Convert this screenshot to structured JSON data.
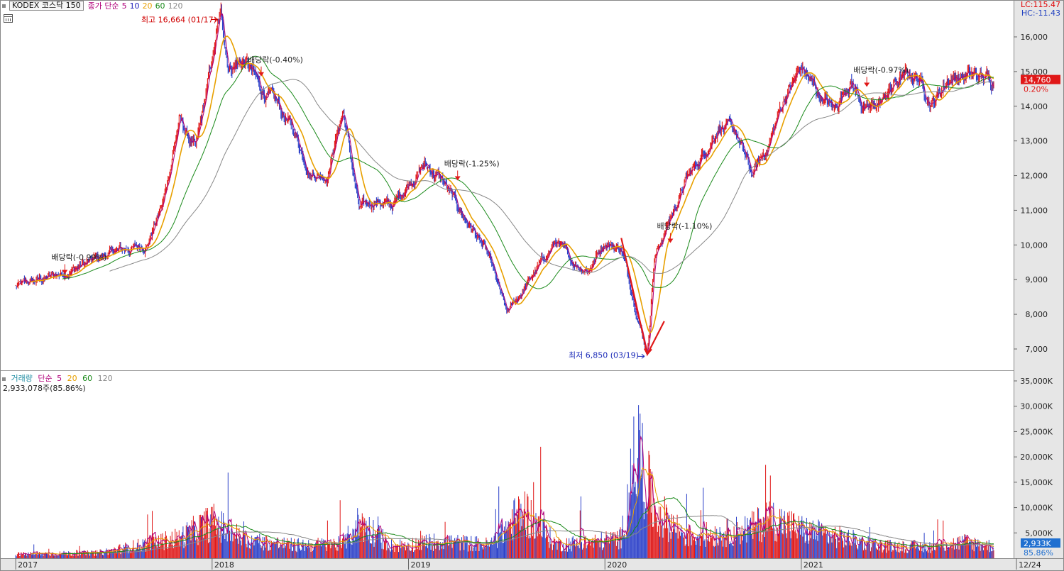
{
  "header": {
    "instrument": "KODEX 코스닥 150",
    "price_indicator": "종가 단순",
    "ma_periods": [
      "5",
      "10",
      "20",
      "60",
      "120"
    ],
    "lc": "LC:115.47",
    "hc": "HC:-11.43"
  },
  "volume_header": {
    "label": "거래량",
    "ma_type": "단순",
    "ma_periods": [
      "5",
      "20",
      "60",
      "120"
    ],
    "current": "2,933,078주(85.86%)"
  },
  "colors": {
    "up": "#e01818",
    "down": "#2a3fc8",
    "ma5": "#b0007a",
    "ma20": "#e8a000",
    "ma60": "#1a8a1a",
    "ma120": "#888888",
    "price_tag": "#e01818",
    "volume_tag": "#1f6fd0"
  },
  "chart_data": [
    {
      "type": "line",
      "title": "KODEX 코스닥 150",
      "ylim": [
        6500,
        17000
      ],
      "y_ticks": [
        7000,
        8000,
        9000,
        10000,
        11000,
        12000,
        13000,
        14000,
        15000,
        16000
      ],
      "y_tick_labels": [
        "7,000",
        "8,000",
        "9,000",
        "10,000",
        "11,000",
        "12,000",
        "13,000",
        "14,000",
        "15,000",
        "16,000"
      ],
      "x_tick_labels": [
        "2017",
        "2018",
        "2019",
        "2020",
        "2021",
        "12/24"
      ],
      "x_ticks": [
        "2017-01",
        "2018-01",
        "2019-01",
        "2020-01",
        "2021-01",
        "2021-12-24"
      ],
      "x_range": [
        "2017-01",
        "2021-12-24"
      ],
      "close_series": {
        "x": [
          "2017-01",
          "2017-04",
          "2017-07",
          "2017-09",
          "2017-10",
          "2017-11",
          "2017-12",
          "2018-01-17",
          "2018-02",
          "2018-03",
          "2018-04",
          "2018-05",
          "2018-06",
          "2018-07",
          "2018-08",
          "2018-09",
          "2018-10",
          "2018-11",
          "2018-12",
          "2019-01",
          "2019-02",
          "2019-03",
          "2019-04",
          "2019-05",
          "2019-06",
          "2019-07",
          "2019-08",
          "2019-09",
          "2019-10",
          "2019-11",
          "2019-12",
          "2020-01",
          "2020-02",
          "2020-03-19",
          "2020-04",
          "2020-05",
          "2020-06",
          "2020-07",
          "2020-08",
          "2020-09",
          "2020-10",
          "2020-11",
          "2020-12",
          "2021-01",
          "2021-02",
          "2021-03",
          "2021-04",
          "2021-05",
          "2021-06",
          "2021-07",
          "2021-08",
          "2021-09",
          "2021-10",
          "2021-11",
          "2021-12-24"
        ],
        "y": [
          8800,
          9200,
          9800,
          10000,
          11200,
          13600,
          12700,
          16664,
          15200,
          15300,
          14500,
          14000,
          13300,
          12100,
          12000,
          13900,
          11000,
          11300,
          11100,
          11800,
          12300,
          11900,
          11100,
          10400,
          9500,
          8000,
          8700,
          9400,
          10100,
          9500,
          9300,
          10100,
          9900,
          6850,
          9600,
          10800,
          11900,
          12600,
          13500,
          13200,
          12000,
          12900,
          14300,
          15100,
          14400,
          13900,
          14800,
          13800,
          14200,
          14800,
          14900,
          14100,
          14800,
          14900,
          14760
        ]
      },
      "series": [
        {
          "name": "5",
          "values_ref": "close_series"
        },
        {
          "name": "10"
        },
        {
          "name": "20"
        },
        {
          "name": "60"
        },
        {
          "name": "120"
        }
      ],
      "current_price": "14,760",
      "current_change": "0.20%",
      "annotations": [
        {
          "text": "최고 16,664 (01/17)",
          "date": "2018-01-17",
          "value": 16664
        },
        {
          "text": "최저 6,850 (03/19)",
          "date": "2020-03-19",
          "value": 6850
        },
        {
          "text": "배당락(-0.99%)",
          "date": "2017-04",
          "value": 9200
        },
        {
          "text": "배당락(-0.40%)",
          "date": "2018-04",
          "value": 14900
        },
        {
          "text": "배당락(-1.25%)",
          "date": "2019-04",
          "value": 11900
        },
        {
          "text": "배당락(-1.10%)",
          "date": "2020-05",
          "value": 10100
        },
        {
          "text": "배당락(-0.97%)",
          "date": "2021-05",
          "value": 14600
        }
      ]
    },
    {
      "type": "bar",
      "title": "거래량",
      "ylim": [
        0,
        36000
      ],
      "y_ticks": [
        5000,
        10000,
        15000,
        20000,
        25000,
        30000,
        35000
      ],
      "y_tick_labels": [
        "5,000K",
        "10,000K",
        "15,000K",
        "20,000K",
        "25,000K",
        "30,000K",
        "35,000K"
      ],
      "unit": "K",
      "volume_series": {
        "x": [
          "2017-01",
          "2017-06",
          "2017-11",
          "2018-01",
          "2018-03",
          "2018-06",
          "2018-09",
          "2018-10",
          "2018-12",
          "2019-03",
          "2019-06",
          "2019-08",
          "2019-10",
          "2019-12",
          "2020-02",
          "2020-03",
          "2020-04",
          "2020-06",
          "2020-08",
          "2020-10",
          "2020-11",
          "2021-01",
          "2021-03",
          "2021-06",
          "2021-09",
          "2021-11",
          "2021-12-24"
        ],
        "y": [
          1000,
          1300,
          5000,
          9000,
          4500,
          3200,
          3500,
          9000,
          3000,
          4200,
          3300,
          12000,
          3500,
          3800,
          5000,
          28000,
          12000,
          5500,
          6000,
          7500,
          10000,
          7000,
          5500,
          3000,
          2800,
          4000,
          2933
        ]
      },
      "current_volume": "2,933K",
      "current_ratio": "85.86%"
    }
  ]
}
